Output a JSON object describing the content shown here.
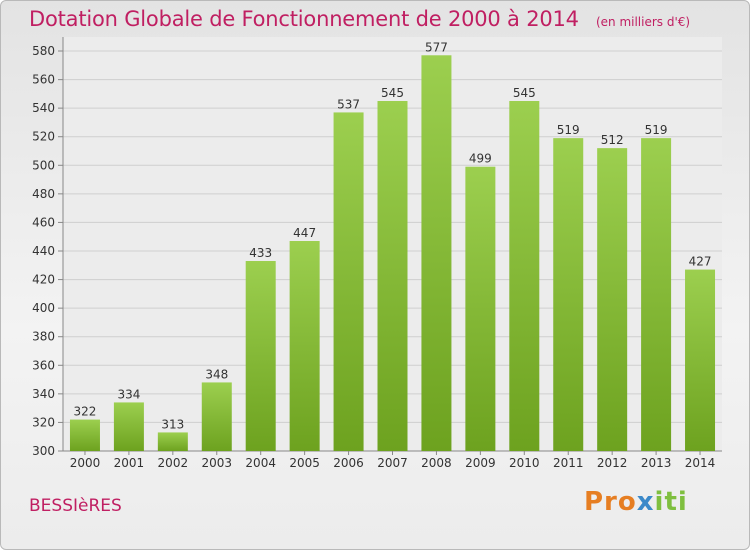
{
  "title": "Dotation Globale de Fonctionnement de 2000 à 2014",
  "unit_note": "(en milliers d'€)",
  "commune": "BESSIèRES",
  "logo": {
    "part1": "Pro",
    "part2": "x",
    "part3": "iti"
  },
  "colors": {
    "bar": "#8cc43e",
    "title": "#c01f62"
  },
  "chart_data": {
    "type": "bar",
    "categories": [
      "2000",
      "2001",
      "2002",
      "2003",
      "2004",
      "2005",
      "2006",
      "2007",
      "2008",
      "2009",
      "2010",
      "2011",
      "2012",
      "2013",
      "2014"
    ],
    "values": [
      322,
      334,
      313,
      348,
      433,
      447,
      537,
      545,
      577,
      499,
      545,
      519,
      512,
      519,
      427
    ],
    "ylim": [
      300,
      580
    ],
    "yticks": [
      300,
      320,
      340,
      360,
      380,
      400,
      420,
      440,
      460,
      480,
      500,
      520,
      540,
      560,
      580
    ],
    "grid": true,
    "title": "Dotation Globale de Fonctionnement de 2000 à 2014",
    "xlabel": "",
    "ylabel": ""
  }
}
